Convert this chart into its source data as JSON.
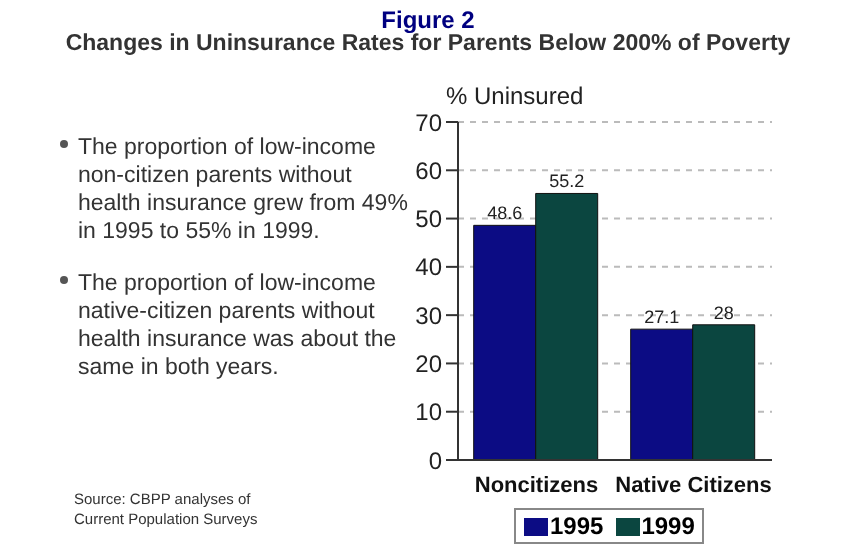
{
  "chart_data": {
    "type": "bar",
    "title": "Figure 2",
    "subtitle": "Changes in Uninsurance Rates for Parents Below 200% of Poverty",
    "ylabel": "% Uninsured",
    "categories": [
      "Noncitizens",
      "Native Citizens"
    ],
    "series": [
      {
        "name": "1995",
        "color": "#0c0c84",
        "values": [
          48.6,
          27.1
        ]
      },
      {
        "name": "1999",
        "color": "#0b4640",
        "values": [
          55.2,
          28
        ]
      }
    ],
    "ylim": [
      0,
      70
    ],
    "yticks": [
      0,
      10,
      20,
      30,
      40,
      50,
      60,
      70
    ],
    "grid": "y",
    "legend": "bottom",
    "data_labels": true,
    "annotations": [
      "The proportion of low-income non-citizen parents without health insurance grew from 49% in 1995 to 55% in 1999.",
      "The proportion of low-income native-citizen parents without health insurance was about the same in both years.",
      "Source: CBPP analyses of Current Population Surveys"
    ]
  }
}
